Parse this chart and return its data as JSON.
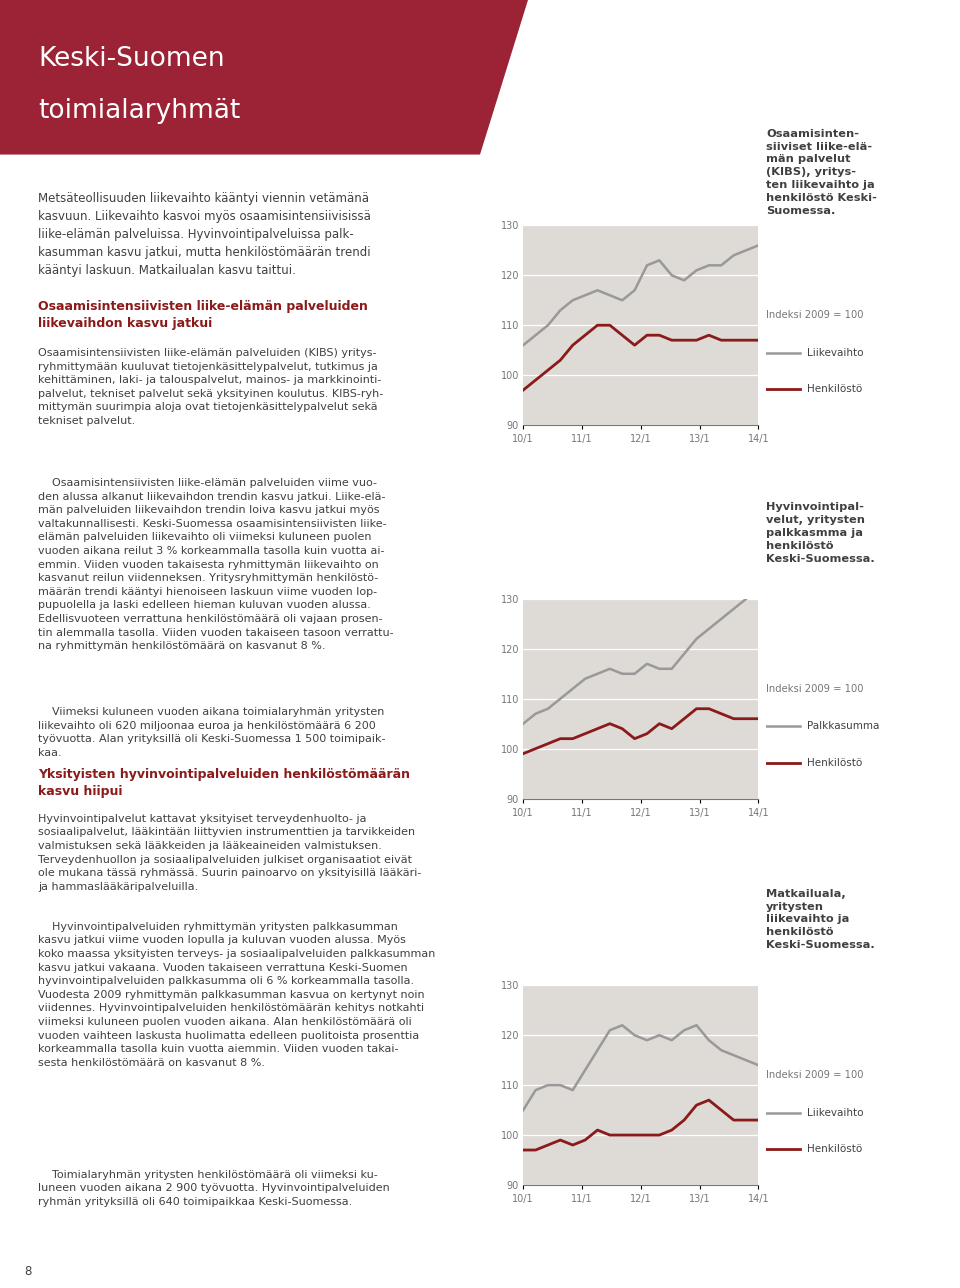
{
  "header_bg_color": "#9b2335",
  "header_title_line1": "Keski-Suomen",
  "header_title_line2": "toimialaryhmät",
  "header_title_color": "#ffffff",
  "page_bg_color": "#ffffff",
  "chart_bg_color": "#dedad6",
  "chart1": {
    "title_bold": "Osaamisinten-\nsiiviset liike-elä-\nmän palvelut\n(KIBS), yritys-\nten liikevaihto ja\nhenkilöstö Keski-\nSuomessa.",
    "subtitle": "Indeksi 2009 = 100",
    "legend1": "Liikevaihto",
    "legend2": "Henkilöstö",
    "line1_color": "#999999",
    "line2_color": "#8b1a1a",
    "ylim": [
      90,
      130
    ],
    "yticks": [
      90,
      100,
      110,
      120,
      130
    ],
    "xticks": [
      "10/1",
      "11/1",
      "12/1",
      "13/1",
      "14/1"
    ],
    "line1_x": [
      0,
      1,
      2,
      3,
      4,
      5,
      6,
      7,
      8,
      9,
      10,
      11,
      12,
      13,
      14,
      15,
      16,
      17,
      18,
      19
    ],
    "line1_y": [
      106,
      108,
      110,
      113,
      115,
      116,
      117,
      116,
      115,
      117,
      122,
      123,
      120,
      119,
      121,
      122,
      122,
      124,
      125,
      126
    ],
    "line2_x": [
      0,
      1,
      2,
      3,
      4,
      5,
      6,
      7,
      8,
      9,
      10,
      11,
      12,
      13,
      14,
      15,
      16,
      17,
      18,
      19
    ],
    "line2_y": [
      97,
      99,
      101,
      103,
      106,
      108,
      110,
      110,
      108,
      106,
      108,
      108,
      107,
      107,
      107,
      108,
      107,
      107,
      107,
      107
    ]
  },
  "chart2": {
    "title_bold": "Hyvinvointipal-\nvelut, yritysten\npalkkasmma ja\nhenkilöstö\nKeski-Suomessa.",
    "subtitle": "Indeksi 2009 = 100",
    "legend1": "Palkkasumma",
    "legend2": "Henkilöstö",
    "line1_color": "#999999",
    "line2_color": "#8b1a1a",
    "ylim": [
      90,
      130
    ],
    "yticks": [
      90,
      100,
      110,
      120,
      130
    ],
    "xticks": [
      "10/1",
      "11/1",
      "12/1",
      "13/1",
      "14/1"
    ],
    "line1_x": [
      0,
      1,
      2,
      3,
      4,
      5,
      6,
      7,
      8,
      9,
      10,
      11,
      12,
      13,
      14,
      15,
      16,
      17,
      18,
      19
    ],
    "line1_y": [
      105,
      107,
      108,
      110,
      112,
      114,
      115,
      116,
      115,
      115,
      117,
      116,
      116,
      119,
      122,
      124,
      126,
      128,
      130,
      132
    ],
    "line2_x": [
      0,
      1,
      2,
      3,
      4,
      5,
      6,
      7,
      8,
      9,
      10,
      11,
      12,
      13,
      14,
      15,
      16,
      17,
      18,
      19
    ],
    "line2_y": [
      99,
      100,
      101,
      102,
      102,
      103,
      104,
      105,
      104,
      102,
      103,
      105,
      104,
      106,
      108,
      108,
      107,
      106,
      106,
      106
    ]
  },
  "chart3": {
    "title_bold": "Matkailuala,\nyritysten\nliikevaihto ja\nhenkilöstö\nKeski-Suomessa.",
    "subtitle": "Indeksi 2009 = 100",
    "legend1": "Liikevaihto",
    "legend2": "Henkilöstö",
    "line1_color": "#999999",
    "line2_color": "#8b1a1a",
    "ylim": [
      90,
      130
    ],
    "yticks": [
      90,
      100,
      110,
      120,
      130
    ],
    "xticks": [
      "10/1",
      "11/1",
      "12/1",
      "13/1",
      "14/1"
    ],
    "line1_x": [
      0,
      1,
      2,
      3,
      4,
      5,
      6,
      7,
      8,
      9,
      10,
      11,
      12,
      13,
      14,
      15,
      16,
      17,
      18,
      19
    ],
    "line1_y": [
      105,
      109,
      110,
      110,
      109,
      113,
      117,
      121,
      122,
      120,
      119,
      120,
      119,
      121,
      122,
      119,
      117,
      116,
      115,
      114
    ],
    "line2_x": [
      0,
      1,
      2,
      3,
      4,
      5,
      6,
      7,
      8,
      9,
      10,
      11,
      12,
      13,
      14,
      15,
      16,
      17,
      18,
      19
    ],
    "line2_y": [
      97,
      97,
      98,
      99,
      98,
      99,
      101,
      100,
      100,
      100,
      100,
      100,
      101,
      103,
      106,
      107,
      105,
      103,
      103,
      103
    ]
  },
  "colors": {
    "section_heading": "#8b1a1a",
    "body_text": "#404040",
    "intro_text": "#404040",
    "axis_label": "#777777",
    "chart_bg": "#dedad6",
    "grid_line": "#ffffff"
  },
  "intro_text": "Metsäteollisuuden liikevaihto kääntyi viennin vetämänä\nkasvuun. Liikevaihto kasvoi myös osaamisintensiivisissä\nliike-elämän palveluissa. Hyvinvointipalveluissa palk-\nkasumman kasvu jatkui, mutta henkilöstömäärän trendi\nkääntyi laskuun. Matkailualan kasvu taittui.",
  "s1_heading": "Osaamisintensiivisten liike-elämän palveluiden\nliikevaihdon kasvu jatkui",
  "s1_body1": "Osaamisintensiivisten liike-elämän palveluiden (KIBS) yritys-\nryhmittymään kuuluvat tietojenkäsittelypalvelut, tutkimus ja\nkehittäminen, laki- ja talouspalvelut, mainos- ja markkinointi-\npalvelut, tekniset palvelut sekä yksityinen koulutus. KIBS-ryh-\nmittymän suurimpia aloja ovat tietojenkäsittelypalvelut sekä\ntekniset palvelut.",
  "s1_body2": "    Osaamisintensiivisten liike-elämän palveluiden viime vuo-\nden alussa alkanut liikevaihdon trendin kasvu jatkui. Liike-elä-\nmän palveluiden liikevaihdon trendin loiva kasvu jatkui myös\nvaltakunnallisesti. Keski-Suomessa osaamisintensiivisten liike-\nelämän palveluiden liikevaihto oli viimeksi kuluneen puolen\nvuoden aikana reilut 3 % korkeammalla tasolla kuin vuotta ai-\nemmin. Viiden vuoden takaisesta ryhmittymän liikevaihto on\nkasvanut reilun viidenneksen. Yritysryhmittymän henkilöstö-\nmäärän trendi kääntyi hienoiseen laskuun viime vuoden lop-\npupuolella ja laski edelleen hieman kuluvan vuoden alussa.\nEdellisvuoteen verrattuna henkilöstömäärä oli vajaan prosen-\ntin alemmalla tasolla. Viiden vuoden takaiseen tasoon verrattu-\nna ryhmittymän henkilöstömäärä on kasvanut 8 %.",
  "s1_body3": "    Viimeksi kuluneen vuoden aikana toimialaryhmän yritysten\nliikevaihto oli 620 miljoonaa euroa ja henkilöstömäärä 6 200\ntyövuotta. Alan yrityksillä oli Keski-Suomessa 1 500 toimipaik-\nkaa.",
  "s2_heading": "Yksityisten hyvinvointipalveluiden henkilöstömäärän\nkasvu hiipui",
  "s2_body1": "Hyvinvointipalvelut kattavat yksityiset terveydenhuolto- ja\nsosiaalipalvelut, lääkintään liittyvien instrumenttien ja tarvikkeiden\nvalmistuksen sekä lääkkeiden ja lääkeaineiden valmistuksen.\nTerveydenhuollon ja sosiaalipalveluiden julkiset organisaatiot eivät\nole mukana tässä ryhmässä. Suurin painoarvo on yksityisillä lääkäri-\nja hammaslääkäripalveluilla.",
  "s2_body2": "    Hyvinvointipalveluiden ryhmittymän yritysten palkkasumman\nkasvu jatkui viime vuoden lopulla ja kuluvan vuoden alussa. Myös\nkoko maassa yksityisten terveys- ja sosiaalipalveluiden palkkasumman\nkasvu jatkui vakaana. Vuoden takaiseen verrattuna Keski-Suomen\nhyvinvointipalveluiden palkkasumma oli 6 % korkeammalla tasolla.\nVuodesta 2009 ryhmittymän palkkasumman kasvua on kertynyt noin\nviidennes. Hyvinvointipalveluiden henkilöstömäärän kehitys notkahti\nviimeksi kuluneen puolen vuoden aikana. Alan henkilöstömäärä oli\nvuoden vaihteen laskusta huolimatta edelleen puolitoista prosenttia\nkorkeammalla tasolla kuin vuotta aiemmin. Viiden vuoden takai-\nsesta henkilöstömäärä on kasvanut 8 %.",
  "s2_body3": "    Toimialaryhmän yritysten henkilöstömäärä oli viimeksi ku-\nluneen vuoden aikana 2 900 työvuotta. Hyvinvointipalveluiden\nryhmän yrityksillä oli 640 toimipaikkaa Keski-Suomessa.",
  "page_number": "8"
}
